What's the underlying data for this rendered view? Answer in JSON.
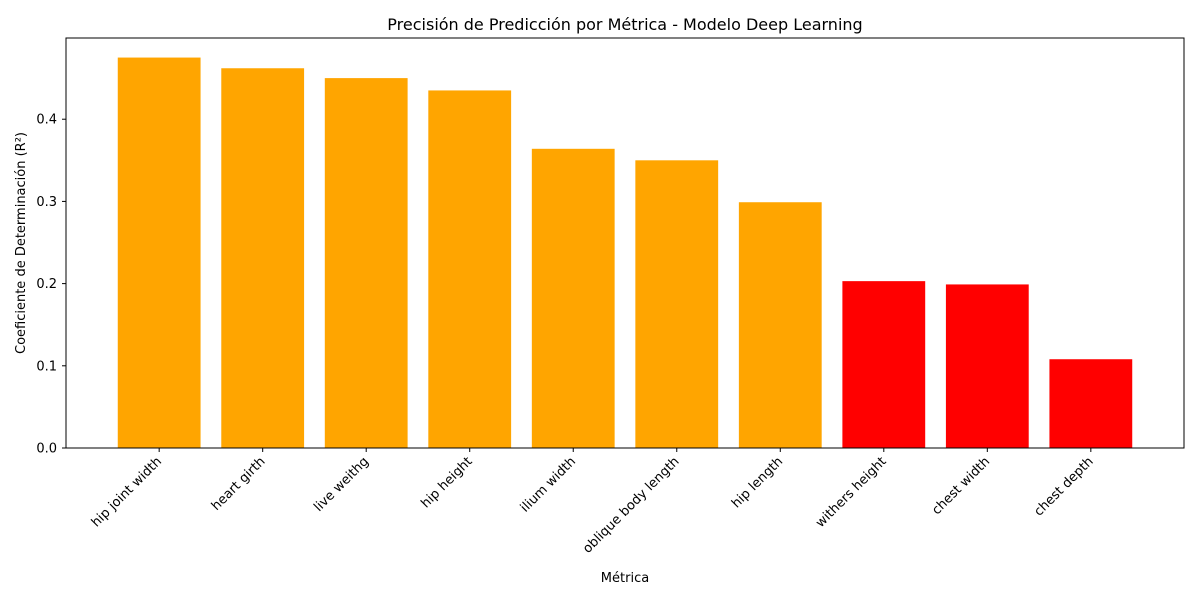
{
  "chart_data": {
    "type": "bar",
    "title": "Precisión de Predicción por Métrica - Modelo Deep Learning",
    "xlabel": "Métrica",
    "ylabel": "Coeficiente de Determinación (R²)",
    "categories": [
      "hip joint width",
      "heart girth",
      "live weithg",
      "hip height",
      "ilium width",
      "oblique body length",
      "hip length",
      "withers height",
      "chest width",
      "chest depth"
    ],
    "values": [
      0.475,
      0.462,
      0.45,
      0.435,
      0.364,
      0.35,
      0.299,
      0.203,
      0.199,
      0.108
    ],
    "bar_colors": [
      "#FFA500",
      "#FFA500",
      "#FFA500",
      "#FFA500",
      "#FFA500",
      "#FFA500",
      "#FFA500",
      "#FF0000",
      "#FF0000",
      "#FF0000"
    ],
    "ylim": [
      0,
      0.4988
    ],
    "yticks": [
      0.0,
      0.1,
      0.2,
      0.3,
      0.4
    ],
    "ytick_labels": [
      "0.0",
      "0.1",
      "0.2",
      "0.3",
      "0.4"
    ],
    "grid": false,
    "legend": "none"
  }
}
